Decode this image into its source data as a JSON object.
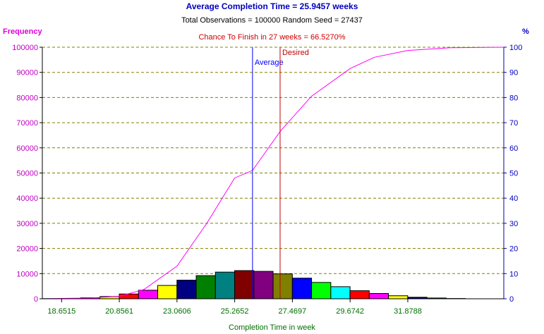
{
  "chart_data": {
    "type": "bar",
    "title": "Average Completion Time = 25.9457 weeks",
    "subtitle": "Total Observations = 100000   Random Seed = 27437",
    "annotation": "Chance To Finish in 27 weeks = 66.5270%",
    "ylabel_left": "Frequency",
    "ylabel_right": "%",
    "xlabel": "Completion Time in week",
    "xlim": [
      17.9153,
      35.5467
    ],
    "ylim_left": [
      0,
      100000
    ],
    "ylim_right": [
      0,
      100
    ],
    "y_ticks_left": [
      0,
      10000,
      20000,
      30000,
      40000,
      50000,
      60000,
      70000,
      80000,
      90000,
      100000
    ],
    "y_ticks_right": [
      0,
      10,
      20,
      30,
      40,
      50,
      60,
      70,
      80,
      90,
      100
    ],
    "x_tick_labels": [
      {
        "value": 18.6515,
        "label": "18.6515"
      },
      {
        "value": 20.8561,
        "label": "20.8561"
      },
      {
        "value": 23.0606,
        "label": "23.0606"
      },
      {
        "value": 25.2652,
        "label": "25.2652"
      },
      {
        "value": 27.4697,
        "label": "27.4697"
      },
      {
        "value": 29.6742,
        "label": "29.6742"
      },
      {
        "value": 31.8788,
        "label": "31.8788"
      }
    ],
    "grid": true,
    "bin_edges_start": 17.9153,
    "bin_width": 0.7348,
    "bars": [
      {
        "value": 50,
        "color": "#00ffff"
      },
      {
        "value": 150,
        "color": "#ff0000"
      },
      {
        "value": 400,
        "color": "#ff00ff"
      },
      {
        "value": 900,
        "color": "#ffff00"
      },
      {
        "value": 1900,
        "color": "#ff0000"
      },
      {
        "value": 3400,
        "color": "#ff00ff"
      },
      {
        "value": 5300,
        "color": "#ffff00"
      },
      {
        "value": 7400,
        "color": "#000080"
      },
      {
        "value": 9200,
        "color": "#008000"
      },
      {
        "value": 10600,
        "color": "#008080"
      },
      {
        "value": 11200,
        "color": "#800000"
      },
      {
        "value": 10900,
        "color": "#800080"
      },
      {
        "value": 9900,
        "color": "#808000"
      },
      {
        "value": 8200,
        "color": "#0000ff"
      },
      {
        "value": 6500,
        "color": "#00ff00"
      },
      {
        "value": 4800,
        "color": "#00ffff"
      },
      {
        "value": 3200,
        "color": "#ff0000"
      },
      {
        "value": 2100,
        "color": "#ff00ff"
      },
      {
        "value": 1200,
        "color": "#ffff00"
      },
      {
        "value": 600,
        "color": "#000080"
      },
      {
        "value": 300,
        "color": "#008000"
      },
      {
        "value": 100,
        "color": "#008080"
      }
    ],
    "cumulative_series": {
      "x": [
        17.9153,
        19.8,
        20.8561,
        21.8,
        23.0606,
        24.2,
        25.2652,
        25.9457,
        27.0,
        28.2,
        29.6742,
        30.6,
        31.8788,
        33.5,
        35.5467
      ],
      "y": [
        0,
        0.3,
        1.0,
        3.7,
        13.0,
        30.0,
        48.0,
        51.0,
        66.5,
        80.5,
        91.5,
        96.0,
        98.7,
        99.8,
        100
      ],
      "color": "#ff00ff"
    },
    "reference_lines": [
      {
        "x": 25.9457,
        "label": "Average",
        "color": "#0000ff"
      },
      {
        "x": 27.0,
        "label": "Desired",
        "color": "#c00000"
      }
    ],
    "colors": {
      "left_axis_text": "#c000c0",
      "right_axis_text": "#0000c0",
      "x_axis_text": "#007000",
      "gridline": "#808000",
      "axis_line": "#000000",
      "right_axis_line": "#0000a0"
    }
  }
}
